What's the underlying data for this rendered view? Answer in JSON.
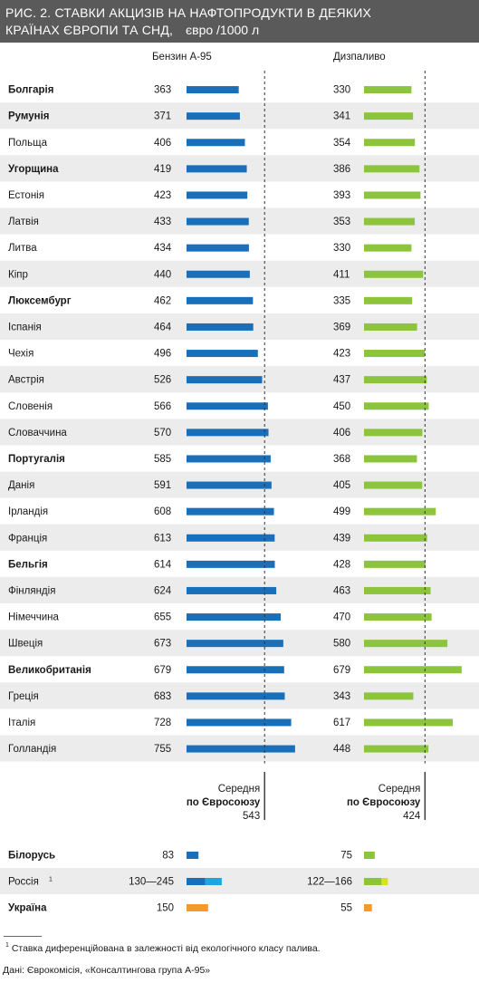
{
  "header": {
    "title_line1": "РИС. 2.     СТАВКИ АКЦИЗІВ НА НАФТОПРОДУКТИ В ДЕЯКИХ",
    "title_line2": "КРАЇНАХ ЄВРОПИ ТА СНД,",
    "unit": "євро  /1000 л"
  },
  "columns": {
    "petrol": "Бензин А-95",
    "diesel": "Дизпаливо"
  },
  "colors": {
    "petrol": "#1a6fba",
    "petrol_upper": "#22a4dc",
    "diesel": "#8cc43c",
    "diesel_upper": "#d8e028",
    "ukraine": "#f39a2b",
    "stripe": "#ececec",
    "average_line": "#333333"
  },
  "chart_data": {
    "type": "bar",
    "orientation": "horizontal",
    "series": [
      {
        "name": "Бензин А-95",
        "values": [
          363,
          371,
          406,
          419,
          423,
          433,
          434,
          440,
          462,
          464,
          496,
          526,
          566,
          570,
          585,
          591,
          608,
          613,
          614,
          624,
          655,
          673,
          679,
          683,
          728,
          755
        ]
      },
      {
        "name": "Дизпаливо",
        "values": [
          330,
          341,
          354,
          386,
          393,
          353,
          330,
          411,
          335,
          369,
          423,
          437,
          450,
          406,
          368,
          405,
          499,
          439,
          428,
          463,
          470,
          580,
          679,
          343,
          617,
          448
        ]
      }
    ],
    "categories": [
      {
        "label": "Болгарія",
        "bold": true
      },
      {
        "label": "Румунія",
        "bold": true
      },
      {
        "label": "Польща",
        "bold": false
      },
      {
        "label": "Угорщина",
        "bold": true
      },
      {
        "label": "Естонія",
        "bold": false
      },
      {
        "label": "Латвія",
        "bold": false
      },
      {
        "label": "Литва",
        "bold": false
      },
      {
        "label": "Кіпр",
        "bold": false
      },
      {
        "label": "Люксембург",
        "bold": true
      },
      {
        "label": "Іспанія",
        "bold": false
      },
      {
        "label": "Чехія",
        "bold": false
      },
      {
        "label": "Австрія",
        "bold": false
      },
      {
        "label": "Словенія",
        "bold": false
      },
      {
        "label": "Словаччина",
        "bold": false
      },
      {
        "label": "Португалія",
        "bold": true
      },
      {
        "label": "Данія",
        "bold": false
      },
      {
        "label": "Ірландія",
        "bold": false
      },
      {
        "label": "Франція",
        "bold": false
      },
      {
        "label": "Бельгія",
        "bold": true
      },
      {
        "label": "Фінляндія",
        "bold": false
      },
      {
        "label": "Німеччина",
        "bold": false
      },
      {
        "label": "Швеція",
        "bold": false
      },
      {
        "label": "Великобританія",
        "bold": true
      },
      {
        "label": "Греція",
        "bold": false
      },
      {
        "label": "Італія",
        "bold": false
      },
      {
        "label": "Голландія",
        "bold": false
      }
    ],
    "average": {
      "label_line1": "Середня",
      "label_line2": "по Євросоюзу",
      "petrol": 543,
      "petrol_label": "543",
      "diesel": 424,
      "diesel_label": "424"
    },
    "cis": [
      {
        "label": "Білорусь",
        "bold": true,
        "sup": "",
        "petrol_label": "83",
        "petrol_low": 83,
        "petrol_high": 83,
        "diesel_label": "75",
        "diesel_low": 75,
        "diesel_high": 75,
        "color_key": "default"
      },
      {
        "label": "Россія",
        "bold": false,
        "sup": "1",
        "petrol_label": "130—245",
        "petrol_low": 130,
        "petrol_high": 245,
        "diesel_label": "122—166",
        "diesel_low": 122,
        "diesel_high": 166,
        "color_key": "default"
      },
      {
        "label": "Україна",
        "bold": true,
        "sup": "",
        "petrol_label": "150",
        "petrol_low": 150,
        "petrol_high": 150,
        "diesel_label": "55",
        "diesel_low": 55,
        "diesel_high": 55,
        "color_key": "ukraine"
      }
    ]
  },
  "footnote": {
    "mark": "1",
    "text": " Ставка диференційована в залежності від екологічного класу палива."
  },
  "source": "Дані: Єврокомісія, «Консалтингова група А-95»"
}
